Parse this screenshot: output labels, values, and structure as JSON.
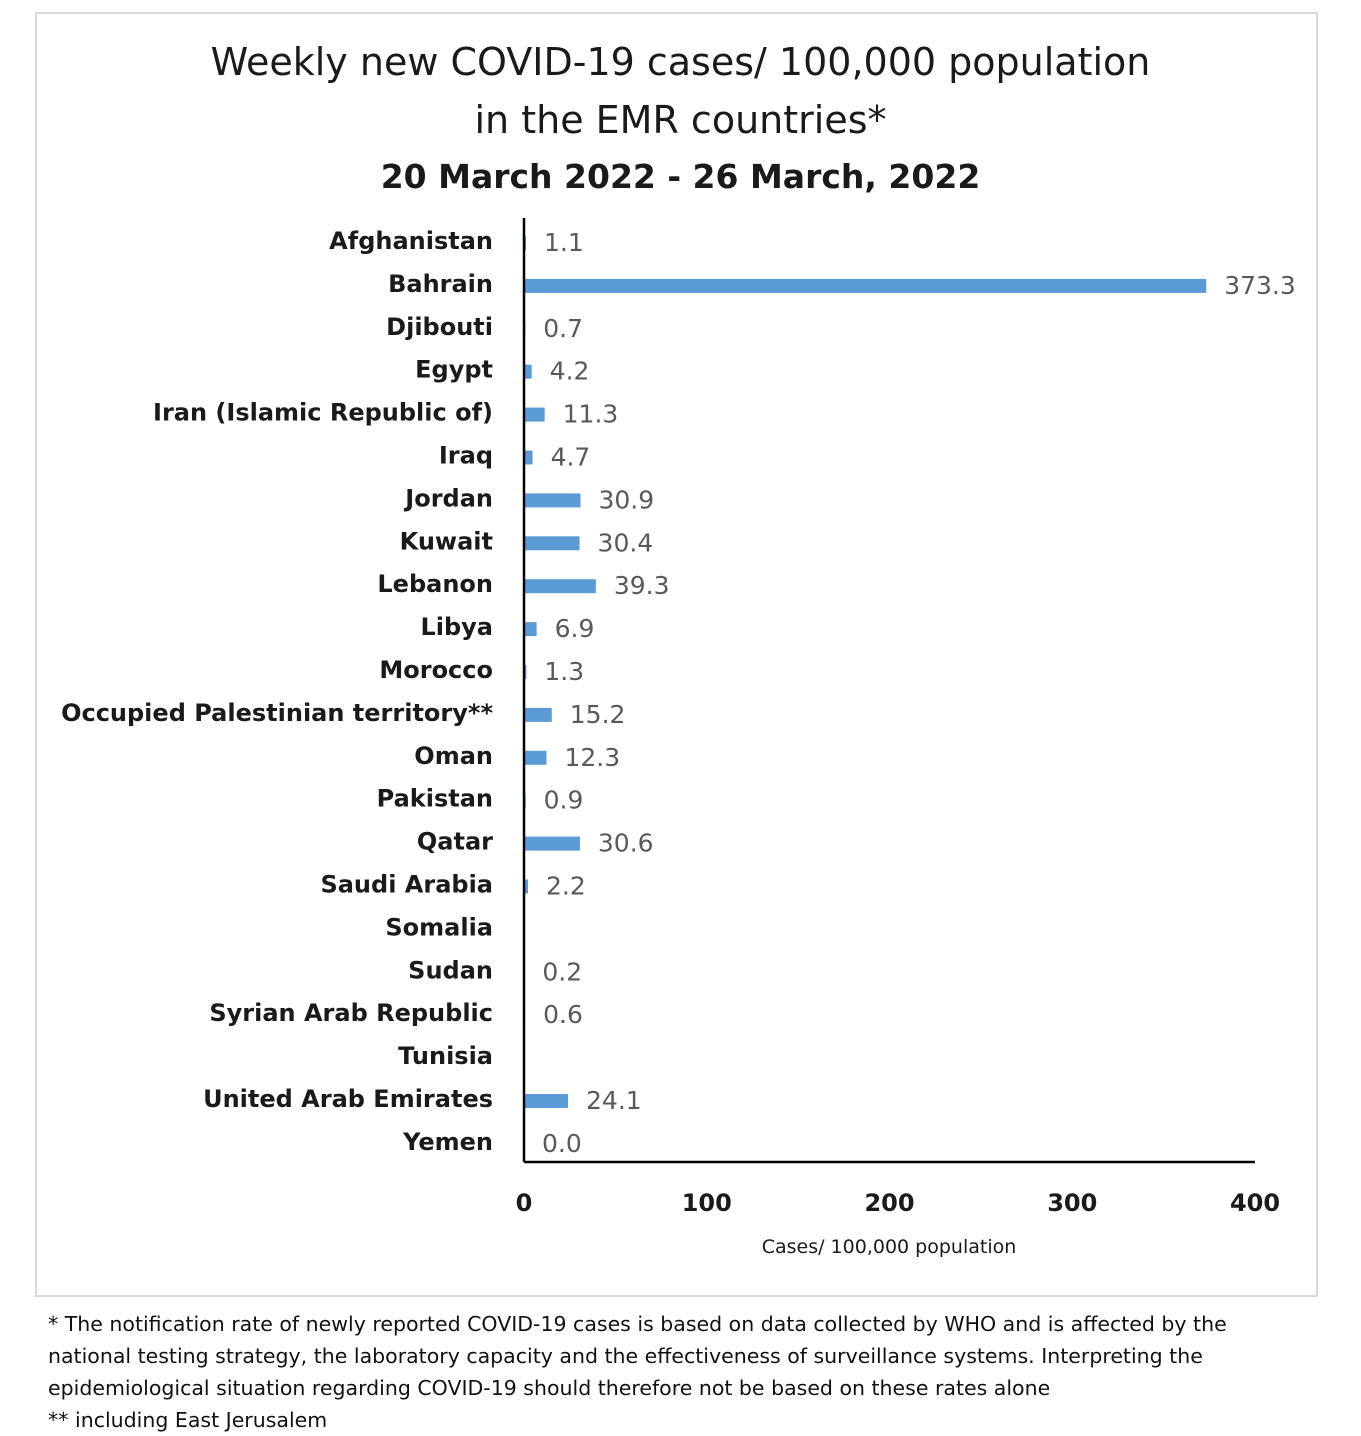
{
  "title_line_1": "Weekly new COVID-19 cases/ 100,000 population",
  "title_line_2": "in the EMR countries*",
  "subtitle": "20 March 2022 - 26 March, 2022",
  "footnotes": {
    "line_1": "* The notification rate of newly reported COVID-19 cases is based on data collected by WHO and is affected by the",
    "line_2": "national testing strategy, the laboratory capacity and the effectiveness of surveillance systems. Interpreting the",
    "line_3": "epidemiological situation regarding COVID-19 should therefore not be based on these rates alone",
    "line_4": "** including East Jerusalem"
  },
  "colors": {
    "bar": "#5b9bd5",
    "axis": "#000000",
    "value_label": "#595959"
  },
  "chart_data": {
    "type": "bar",
    "orientation": "horizontal",
    "title": "Weekly new COVID-19 cases/ 100,000 population in the EMR countries*",
    "subtitle": "20 March 2022 - 26 March, 2022",
    "xlabel": "Cases/ 100,000 population",
    "ylabel": "",
    "xlim": [
      0,
      400
    ],
    "xticks": [
      "0",
      "100",
      "200",
      "300",
      "400"
    ],
    "grid": false,
    "legend": "none",
    "categories": [
      "Afghanistan",
      "Bahrain",
      "Djibouti",
      "Egypt",
      "Iran (Islamic Republic of)",
      "Iraq",
      "Jordan",
      "Kuwait",
      "Lebanon",
      "Libya",
      "Morocco",
      "Occupied Palestinian territory**",
      "Oman",
      "Pakistan",
      "Qatar",
      "Saudi Arabia",
      "Somalia",
      "Sudan",
      "Syrian Arab Republic",
      "Tunisia",
      "United Arab Emirates",
      "Yemen"
    ],
    "values": [
      1.1,
      373.3,
      0.7,
      4.2,
      11.3,
      4.7,
      30.9,
      30.4,
      39.3,
      6.9,
      1.3,
      15.2,
      12.3,
      0.9,
      30.6,
      2.2,
      null,
      0.2,
      0.6,
      null,
      24.1,
      0.0
    ],
    "value_labels": [
      "1.1",
      "373.3",
      "0.7",
      "4.2",
      "11.3",
      "4.7",
      "30.9",
      "30.4",
      "39.3",
      "6.9",
      "1.3",
      "15.2",
      "12.3",
      "0.9",
      "30.6",
      "2.2",
      "",
      "0.2",
      "0.6",
      "",
      "24.1",
      "0.0"
    ]
  }
}
